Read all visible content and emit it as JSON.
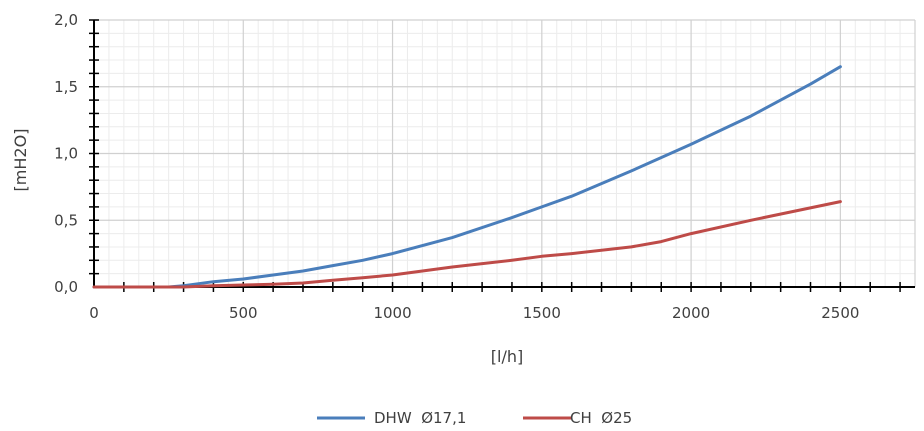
{
  "chart_data": {
    "type": "line",
    "xlabel": "[l/h]",
    "ylabel": "[mH2O]",
    "xlim": [
      0,
      2750
    ],
    "ylim": [
      0,
      2
    ],
    "x_ticks": [
      0,
      500,
      1000,
      1500,
      2000,
      2500
    ],
    "x_tick_labels": [
      "0",
      "500",
      "1000",
      "1500",
      "2000",
      "2500"
    ],
    "y_ticks": [
      0,
      0.5,
      1,
      1.5,
      2
    ],
    "y_tick_labels": [
      "0,0",
      "0,5",
      "1,0",
      "1,5",
      "2,0"
    ],
    "grid": true,
    "legend_position": "bottom",
    "series": [
      {
        "name": "DHW  Ø17,1",
        "color": "#4a7ebb",
        "x": [
          0,
          250,
          300,
          400,
          500,
          600,
          700,
          800,
          900,
          1000,
          1200,
          1400,
          1500,
          1600,
          1800,
          2000,
          2200,
          2400,
          2500
        ],
        "y": [
          0,
          0,
          0.01,
          0.04,
          0.06,
          0.09,
          0.12,
          0.16,
          0.2,
          0.25,
          0.37,
          0.52,
          0.6,
          0.68,
          0.87,
          1.07,
          1.28,
          1.52,
          1.65
        ]
      },
      {
        "name": "CH  Ø25",
        "color": "#be4b48",
        "x": [
          0,
          300,
          400,
          500,
          600,
          700,
          800,
          900,
          1000,
          1200,
          1400,
          1500,
          1600,
          1800,
          1900,
          2000,
          2200,
          2500
        ],
        "y": [
          0,
          0,
          0.01,
          0.015,
          0.02,
          0.03,
          0.05,
          0.07,
          0.09,
          0.15,
          0.2,
          0.23,
          0.25,
          0.3,
          0.34,
          0.4,
          0.5,
          0.64
        ]
      }
    ]
  }
}
